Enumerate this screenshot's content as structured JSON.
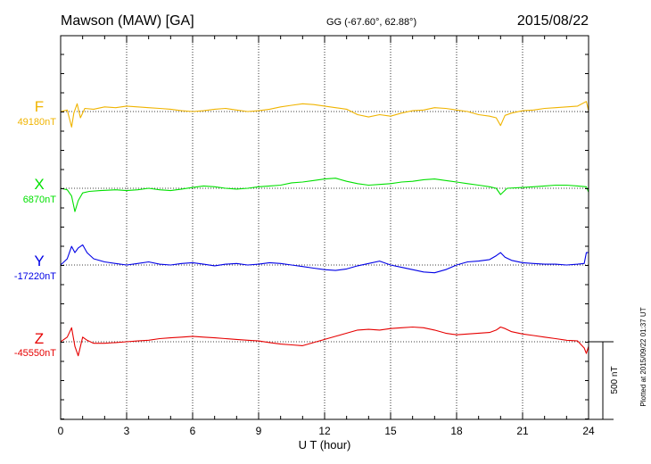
{
  "header": {
    "station": "Mawson (MAW)  [GA]",
    "coords": "GG (-67.60°,  62.88°)",
    "date": "2015/08/22"
  },
  "footer": {
    "plotted": "Plotted at 2015/09/22 01:37 UT"
  },
  "colors": {
    "F": "#f0b400",
    "X": "#00e000",
    "Y": "#0000e6",
    "Z": "#e60000",
    "axis": "#000000"
  },
  "chart_data": {
    "type": "line",
    "xlabel": "U T (hour)",
    "xlim": [
      0,
      24
    ],
    "xticks": [
      "0",
      "3",
      "6",
      "9",
      "12",
      "15",
      "18",
      "21",
      "24"
    ],
    "scale_label": "500 nT",
    "scale_nT": 500,
    "series": [
      {
        "name": "F",
        "baseline_label": "49180nT",
        "baseline": 49180,
        "x": [
          0,
          0.3,
          0.5,
          0.6,
          0.75,
          0.9,
          1.1,
          1.5,
          2,
          2.5,
          3,
          3.5,
          4,
          4.5,
          5,
          5.5,
          6,
          6.5,
          7,
          7.5,
          8,
          8.5,
          9,
          9.5,
          10,
          10.5,
          11,
          11.5,
          12,
          12.5,
          13,
          13.5,
          14,
          14.5,
          15,
          15.5,
          16,
          16.5,
          17,
          17.5,
          18,
          18.5,
          19,
          19.5,
          19.8,
          20,
          20.2,
          20.5,
          21,
          21.5,
          22,
          22.5,
          23,
          23.5,
          23.9,
          24
        ],
        "y": [
          49180,
          49190,
          49080,
          49170,
          49230,
          49140,
          49200,
          49195,
          49210,
          49205,
          49215,
          49210,
          49205,
          49200,
          49195,
          49185,
          49180,
          49185,
          49195,
          49200,
          49190,
          49180,
          49185,
          49195,
          49210,
          49220,
          49230,
          49225,
          49215,
          49205,
          49195,
          49160,
          49145,
          49160,
          49150,
          49170,
          49185,
          49190,
          49205,
          49200,
          49190,
          49180,
          49160,
          49150,
          49140,
          49090,
          49155,
          49170,
          49185,
          49190,
          49200,
          49205,
          49210,
          49215,
          49245,
          49185
        ]
      },
      {
        "name": "X",
        "baseline_label": "6870nT",
        "baseline": 6870,
        "x": [
          0,
          0.3,
          0.5,
          0.65,
          0.8,
          1,
          1.3,
          1.8,
          2.5,
          3,
          3.5,
          4,
          4.5,
          5,
          5.5,
          6,
          6.5,
          7,
          7.5,
          8,
          8.5,
          9,
          9.5,
          10,
          10.5,
          11,
          11.5,
          12,
          12.5,
          13,
          13.5,
          14,
          14.5,
          15,
          15.5,
          16,
          16.5,
          17,
          17.5,
          18,
          18.5,
          19,
          19.5,
          19.8,
          20,
          20.3,
          21,
          21.5,
          22,
          22.5,
          23,
          23.5,
          23.9,
          24
        ],
        "y": [
          6870,
          6860,
          6820,
          6720,
          6790,
          6840,
          6850,
          6855,
          6860,
          6855,
          6860,
          6870,
          6860,
          6855,
          6865,
          6875,
          6885,
          6880,
          6870,
          6865,
          6870,
          6880,
          6885,
          6890,
          6905,
          6910,
          6920,
          6930,
          6935,
          6915,
          6900,
          6890,
          6895,
          6900,
          6910,
          6915,
          6925,
          6930,
          6920,
          6910,
          6900,
          6890,
          6880,
          6870,
          6830,
          6870,
          6875,
          6880,
          6885,
          6890,
          6890,
          6885,
          6880,
          6845
        ]
      },
      {
        "name": "Y",
        "baseline_label": "-17220nT",
        "baseline": -17220,
        "x": [
          0,
          0.3,
          0.5,
          0.65,
          0.8,
          1,
          1.2,
          1.5,
          2,
          2.5,
          3,
          3.5,
          4,
          4.5,
          5,
          5.5,
          6,
          6.5,
          7,
          7.5,
          8,
          8.5,
          9,
          9.5,
          10,
          10.5,
          11,
          11.5,
          12,
          12.5,
          13,
          13.5,
          14,
          14.5,
          15,
          15.5,
          16,
          16.5,
          17,
          17.5,
          18,
          18.5,
          19,
          19.5,
          19.8,
          20,
          20.2,
          20.5,
          21,
          21.5,
          22,
          22.5,
          23,
          23.5,
          23.8,
          23.9,
          24
        ],
        "y": [
          -17220,
          -17180,
          -17100,
          -17140,
          -17110,
          -17090,
          -17140,
          -17180,
          -17200,
          -17210,
          -17220,
          -17210,
          -17200,
          -17215,
          -17220,
          -17210,
          -17205,
          -17215,
          -17225,
          -17215,
          -17210,
          -17220,
          -17215,
          -17205,
          -17210,
          -17220,
          -17230,
          -17240,
          -17250,
          -17255,
          -17245,
          -17225,
          -17210,
          -17195,
          -17220,
          -17235,
          -17250,
          -17265,
          -17270,
          -17250,
          -17220,
          -17200,
          -17195,
          -17185,
          -17160,
          -17140,
          -17170,
          -17190,
          -17205,
          -17210,
          -17215,
          -17215,
          -17220,
          -17215,
          -17210,
          -17140,
          -17140
        ]
      },
      {
        "name": "Z",
        "baseline_label": "-45550nT",
        "baseline": -45550,
        "x": [
          0,
          0.3,
          0.5,
          0.65,
          0.8,
          1,
          1.2,
          1.5,
          2,
          2.5,
          3,
          3.5,
          4,
          4.5,
          5,
          5.5,
          6,
          6.5,
          7,
          7.5,
          8,
          8.5,
          9,
          9.5,
          10,
          10.5,
          11,
          11.5,
          12,
          12.5,
          13,
          13.5,
          14,
          14.5,
          15,
          15.5,
          16,
          16.5,
          17,
          17.5,
          18,
          18.5,
          19,
          19.5,
          19.8,
          20,
          20.2,
          20.5,
          21,
          21.5,
          22,
          22.5,
          23,
          23.5,
          23.8,
          23.9,
          24
        ],
        "y": [
          -45550,
          -45520,
          -45460,
          -45580,
          -45640,
          -45520,
          -45540,
          -45560,
          -45560,
          -45555,
          -45550,
          -45545,
          -45540,
          -45530,
          -45525,
          -45520,
          -45515,
          -45520,
          -45525,
          -45530,
          -45535,
          -45540,
          -45545,
          -45555,
          -45565,
          -45570,
          -45575,
          -45555,
          -45535,
          -45515,
          -45495,
          -45475,
          -45470,
          -45475,
          -45465,
          -45460,
          -45455,
          -45460,
          -45475,
          -45495,
          -45505,
          -45500,
          -45495,
          -45490,
          -45475,
          -45455,
          -45465,
          -45485,
          -45500,
          -45510,
          -45520,
          -45530,
          -45540,
          -45545,
          -45590,
          -45625,
          -45580
        ]
      }
    ]
  }
}
